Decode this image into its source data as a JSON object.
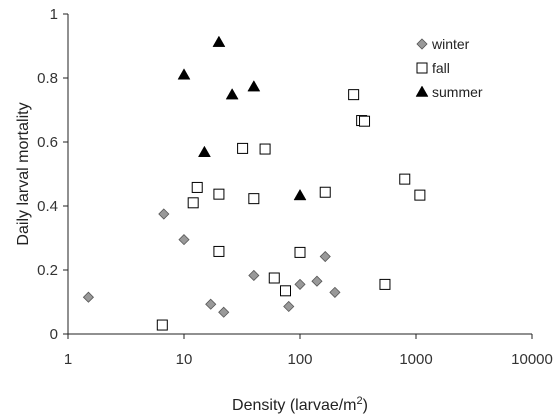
{
  "chart_data": {
    "type": "scatter",
    "xscale": "log",
    "xlim": [
      1,
      10000
    ],
    "ylim": [
      0,
      1
    ],
    "xticks": [
      1,
      10,
      100,
      1000,
      10000
    ],
    "xtick_labels": [
      "1",
      "10",
      "100",
      "1000",
      "10000"
    ],
    "yticks": [
      0,
      0.2,
      0.4,
      0.6,
      0.8,
      1
    ],
    "ytick_labels": [
      "0",
      "0.2",
      "0.4",
      "0.6",
      "0.8",
      "1"
    ],
    "xlabel_main": "Density (larvae/m",
    "xlabel_sup": "2",
    "xlabel_end": ")",
    "ylabel": "Daily larval mortality",
    "grid": false,
    "legend": "top-right",
    "series": [
      {
        "name": "winter",
        "marker": "diamond",
        "color": "#999999",
        "points": [
          [
            1.5,
            0.115
          ],
          [
            6.7,
            0.375
          ],
          [
            10,
            0.295
          ],
          [
            17,
            0.093
          ],
          [
            22,
            0.068
          ],
          [
            40,
            0.183
          ],
          [
            80,
            0.086
          ],
          [
            100,
            0.155
          ],
          [
            140,
            0.165
          ],
          [
            165,
            0.242
          ],
          [
            200,
            0.13
          ]
        ]
      },
      {
        "name": "fall",
        "marker": "square-open",
        "color": "#000000",
        "points": [
          [
            6.5,
            0.028
          ],
          [
            12,
            0.41
          ],
          [
            13,
            0.458
          ],
          [
            20,
            0.437
          ],
          [
            20,
            0.258
          ],
          [
            32,
            0.58
          ],
          [
            40,
            0.423
          ],
          [
            50,
            0.578
          ],
          [
            60,
            0.175
          ],
          [
            75,
            0.135
          ],
          [
            100,
            0.255
          ],
          [
            165,
            0.443
          ],
          [
            290,
            0.748
          ],
          [
            340,
            0.667
          ],
          [
            360,
            0.665
          ],
          [
            540,
            0.155
          ],
          [
            800,
            0.484
          ],
          [
            1080,
            0.434
          ]
        ]
      },
      {
        "name": "summer",
        "marker": "triangle",
        "color": "#000000",
        "points": [
          [
            10,
            0.81
          ],
          [
            15,
            0.568
          ],
          [
            20,
            0.912
          ],
          [
            26,
            0.748
          ],
          [
            40,
            0.773
          ],
          [
            100,
            0.433
          ]
        ]
      }
    ]
  }
}
